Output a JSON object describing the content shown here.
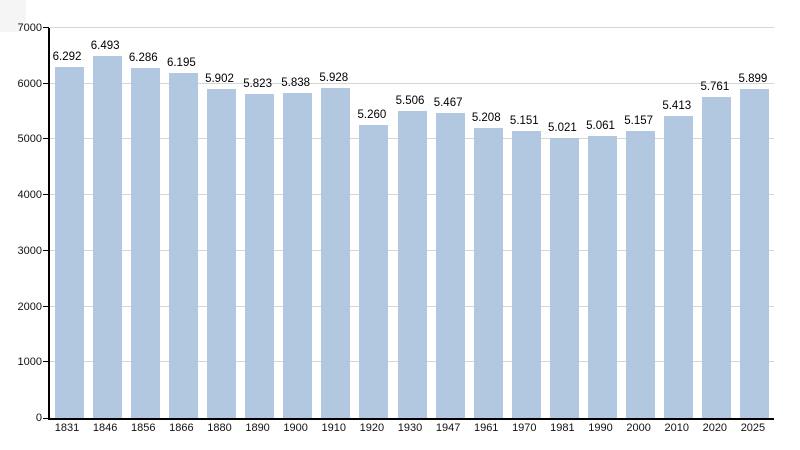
{
  "chart_data": {
    "type": "bar",
    "title": "",
    "xlabel": "",
    "ylabel": "",
    "categories": [
      "1831",
      "1846",
      "1856",
      "1866",
      "1880",
      "1890",
      "1900",
      "1910",
      "1920",
      "1930",
      "1947",
      "1961",
      "1970",
      "1981",
      "1990",
      "2000",
      "2010",
      "2020",
      "2025"
    ],
    "values": [
      6292,
      6493,
      6286,
      6195,
      5902,
      5823,
      5838,
      5928,
      5260,
      5506,
      5467,
      5208,
      5151,
      5021,
      5061,
      5157,
      5413,
      5761,
      5899
    ],
    "value_labels": [
      "6.292",
      "6.493",
      "6.286",
      "6.195",
      "5.902",
      "5.823",
      "5.838",
      "5.928",
      "5.260",
      "5.506",
      "5.467",
      "5.208",
      "5.151",
      "5.021",
      "5.061",
      "5.157",
      "5.413",
      "5.761",
      "5.899"
    ],
    "ylim": [
      0,
      7000
    ],
    "yticks": [
      0,
      1000,
      2000,
      3000,
      4000,
      5000,
      6000,
      7000
    ],
    "ytick_labels": [
      "0",
      "1000",
      "2000",
      "3000",
      "4000",
      "5000",
      "6000",
      "7000"
    ],
    "grid": true,
    "legend": "none",
    "colors": {
      "bar": "#b1c8e0",
      "grid": "#d6d6d6",
      "axis": "#000000",
      "text": "#000000",
      "background": "#ffffff"
    }
  }
}
